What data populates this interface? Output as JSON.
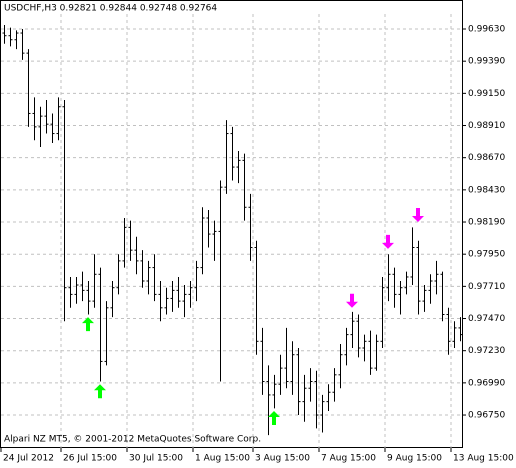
{
  "chart_data": {
    "type": "ohlc",
    "title": "USDCHF,H3  0.92821 0.92844 0.92748 0.92764",
    "footer": "Alpari NZ MT5, © 2001-2012 MetaQuotes Software Corp.",
    "color": "#000000",
    "grid": true,
    "open": [
      0.996,
      0.9958,
      0.9955,
      0.996,
      0.9945,
      0.99,
      0.989,
      0.9898,
      0.9892,
      0.9885,
      0.9905,
      0.977,
      0.9765,
      0.9772,
      0.9768,
      0.976,
      0.978,
      0.9715,
      0.9755,
      0.977,
      0.979,
      0.9815,
      0.9798,
      0.979,
      0.9775,
      0.9785,
      0.9765,
      0.9755,
      0.9762,
      0.9768,
      0.976,
      0.9765,
      0.977,
      0.9785,
      0.9822,
      0.981,
      0.9812,
      0.9845,
      0.9885,
      0.986,
      0.9865,
      0.983,
      0.98,
      0.973,
      0.97,
      0.969,
      0.9698,
      0.971,
      0.97,
      0.972,
      0.9685,
      0.9695,
      0.97,
      0.9675,
      0.9685,
      0.9692,
      0.9705,
      0.972,
      0.9735,
      0.9745,
      0.9725,
      0.973,
      0.971,
      0.973,
      0.977,
      0.978,
      0.9765,
      0.977,
      0.9778,
      0.98,
      0.976,
      0.9768,
      0.9775,
      0.978,
      0.975,
      0.973,
      0.974
    ],
    "high": [
      0.9966,
      0.9964,
      0.9962,
      0.9963,
      0.9948,
      0.9912,
      0.9905,
      0.991,
      0.99,
      0.9912,
      0.991,
      0.9778,
      0.9778,
      0.9782,
      0.9775,
      0.9795,
      0.9785,
      0.976,
      0.9775,
      0.9795,
      0.9822,
      0.982,
      0.9808,
      0.9798,
      0.979,
      0.9795,
      0.9775,
      0.977,
      0.9775,
      0.9778,
      0.9772,
      0.9775,
      0.979,
      0.983,
      0.9828,
      0.982,
      0.985,
      0.9895,
      0.989,
      0.9872,
      0.987,
      0.984,
      0.9805,
      0.974,
      0.9712,
      0.9705,
      0.972,
      0.974,
      0.973,
      0.9725,
      0.9705,
      0.971,
      0.9708,
      0.969,
      0.9698,
      0.971,
      0.9728,
      0.974,
      0.9752,
      0.975,
      0.9735,
      0.9738,
      0.9735,
      0.9778,
      0.9795,
      0.9785,
      0.9775,
      0.9782,
      0.9815,
      0.9805,
      0.9772,
      0.978,
      0.979,
      0.9782,
      0.9755,
      0.9745,
      0.9748
    ],
    "low": [
      0.9952,
      0.995,
      0.9948,
      0.994,
      0.989,
      0.988,
      0.9875,
      0.9885,
      0.9878,
      0.988,
      0.9745,
      0.9755,
      0.9758,
      0.976,
      0.975,
      0.9755,
      0.97,
      0.9712,
      0.9748,
      0.9765,
      0.9785,
      0.979,
      0.978,
      0.977,
      0.9765,
      0.976,
      0.9745,
      0.975,
      0.9752,
      0.9755,
      0.9748,
      0.9755,
      0.976,
      0.978,
      0.98,
      0.979,
      0.97,
      0.984,
      0.985,
      0.9848,
      0.982,
      0.979,
      0.972,
      0.969,
      0.966,
      0.968,
      0.969,
      0.9695,
      0.969,
      0.9675,
      0.967,
      0.9685,
      0.9665,
      0.9662,
      0.9678,
      0.9685,
      0.9695,
      0.9712,
      0.9725,
      0.9718,
      0.9715,
      0.9705,
      0.9708,
      0.9725,
      0.976,
      0.9755,
      0.975,
      0.9765,
      0.9772,
      0.975,
      0.9752,
      0.9758,
      0.9765,
      0.9745,
      0.972,
      0.9725,
      0.973
    ],
    "close": [
      0.9958,
      0.9955,
      0.996,
      0.9945,
      0.99,
      0.989,
      0.9898,
      0.9892,
      0.9885,
      0.9905,
      0.977,
      0.9765,
      0.9772,
      0.9768,
      0.976,
      0.978,
      0.9715,
      0.9755,
      0.977,
      0.979,
      0.9815,
      0.9798,
      0.979,
      0.9775,
      0.9785,
      0.9765,
      0.9755,
      0.9762,
      0.9768,
      0.976,
      0.9765,
      0.977,
      0.9785,
      0.9822,
      0.981,
      0.9812,
      0.9845,
      0.9885,
      0.986,
      0.9865,
      0.983,
      0.98,
      0.973,
      0.97,
      0.969,
      0.9698,
      0.971,
      0.97,
      0.972,
      0.9685,
      0.9695,
      0.97,
      0.9675,
      0.9685,
      0.9692,
      0.9705,
      0.972,
      0.9735,
      0.9745,
      0.9725,
      0.973,
      0.971,
      0.973,
      0.977,
      0.978,
      0.9765,
      0.977,
      0.9778,
      0.98,
      0.976,
      0.9768,
      0.9775,
      0.978,
      0.975,
      0.973,
      0.974,
      0.9735
    ],
    "arrows_up": {
      "color": "#00ff00",
      "x": [
        14,
        16,
        45
      ],
      "y": [
        0.9748,
        0.9698,
        0.9678
      ]
    },
    "arrows_down": {
      "color": "#ff00ff",
      "x": [
        58,
        64,
        69
      ],
      "y": [
        0.9755,
        0.9799,
        0.9819
      ]
    },
    "xlim": [
      0,
      77
    ],
    "xticks": [
      {
        "value": 0,
        "label": "24 Jul 2012"
      },
      {
        "value": 10,
        "label": "26 Jul 15:00"
      },
      {
        "value": 21,
        "label": "30 Jul 15:00"
      },
      {
        "value": 32,
        "label": "1 Aug 15:00"
      },
      {
        "value": 42,
        "label": "3 Aug 15:00"
      },
      {
        "value": 53,
        "label": "7 Aug 15:00"
      },
      {
        "value": 64,
        "label": "9 Aug 15:00"
      },
      {
        "value": 75,
        "label": "13 Aug 15:00"
      }
    ],
    "ylim": [
      0.96504,
      0.99742
    ],
    "yticks": [
      {
        "value": 0.9963,
        "label": "0.99630"
      },
      {
        "value": 0.9939,
        "label": "0.99390"
      },
      {
        "value": 0.9915,
        "label": "0.99150"
      },
      {
        "value": 0.9891,
        "label": "0.98910"
      },
      {
        "value": 0.9867,
        "label": "0.98670"
      },
      {
        "value": 0.9843,
        "label": "0.98430"
      },
      {
        "value": 0.9819,
        "label": "0.98190"
      },
      {
        "value": 0.9795,
        "label": "0.97950"
      },
      {
        "value": 0.9771,
        "label": "0.97710"
      },
      {
        "value": 0.9747,
        "label": "0.97470"
      },
      {
        "value": 0.9723,
        "label": "0.97230"
      },
      {
        "value": 0.9699,
        "label": "0.96990"
      },
      {
        "value": 0.9675,
        "label": "0.96750"
      }
    ]
  }
}
